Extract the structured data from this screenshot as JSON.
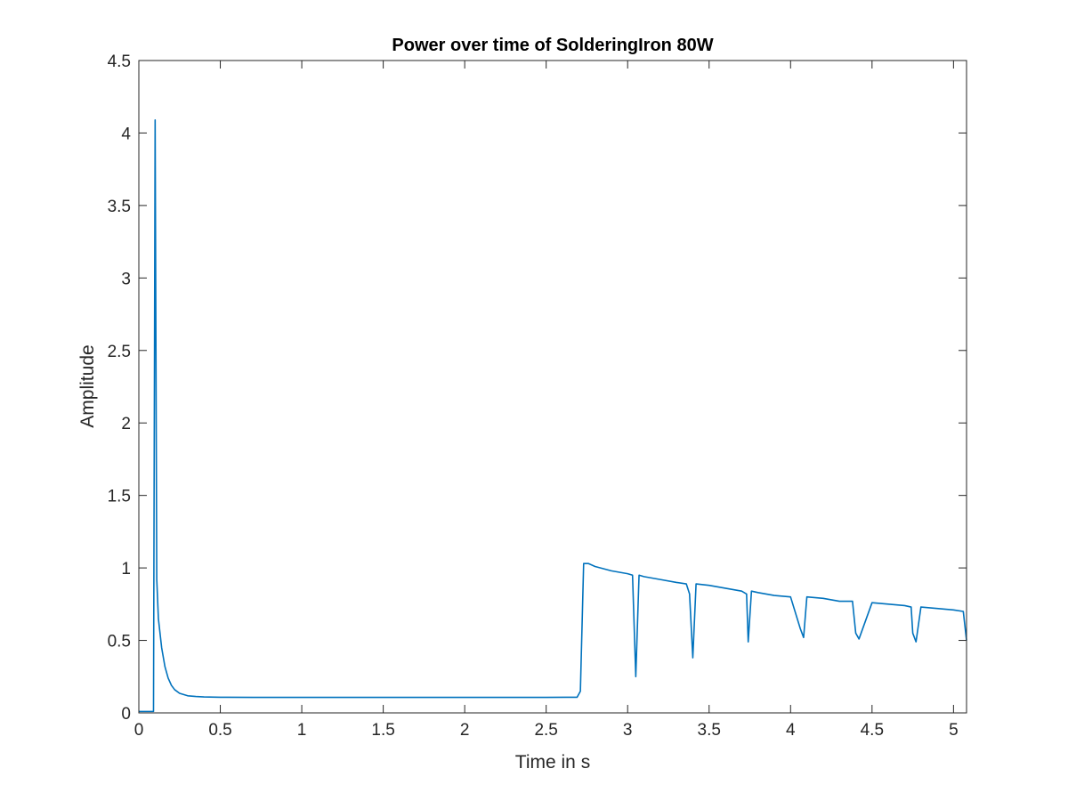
{
  "chart_data": {
    "type": "line",
    "title": "Power over time of SolderingIron 80W",
    "xlabel": "Time in s",
    "ylabel": "Amplitude",
    "xlim": [
      0,
      5.08
    ],
    "ylim": [
      0,
      4.5
    ],
    "xticks": [
      0,
      0.5,
      1,
      1.5,
      2,
      2.5,
      3,
      3.5,
      4,
      4.5,
      5
    ],
    "xtick_labels": [
      "0",
      "0.5",
      "1",
      "1.5",
      "2",
      "2.5",
      "3",
      "3.5",
      "4",
      "4.5",
      "5"
    ],
    "yticks": [
      0,
      0.5,
      1,
      1.5,
      2,
      2.5,
      3,
      3.5,
      4,
      4.5
    ],
    "ytick_labels": [
      "0",
      "0.5",
      "1",
      "1.5",
      "2",
      "2.5",
      "3",
      "3.5",
      "4",
      "4.5"
    ],
    "grid": false,
    "line_color": "#0072BD",
    "axis_color": "#262626",
    "series": [
      {
        "x": [
          0,
          0.09,
          0.1,
          0.11,
          0.12,
          0.14,
          0.16,
          0.18,
          0.2,
          0.22,
          0.25,
          0.3,
          0.35,
          0.4,
          0.5,
          0.7,
          1.0,
          1.5,
          2.0,
          2.5,
          2.69,
          2.71,
          2.73,
          2.76,
          2.8,
          2.9,
          3.0,
          3.03,
          3.05,
          3.07,
          3.1,
          3.2,
          3.3,
          3.36,
          3.38,
          3.4,
          3.42,
          3.5,
          3.6,
          3.7,
          3.73,
          3.74,
          3.76,
          3.8,
          3.9,
          4.0,
          4.06,
          4.08,
          4.1,
          4.2,
          4.3,
          4.38,
          4.4,
          4.42,
          4.5,
          4.6,
          4.7,
          4.74,
          4.75,
          4.77,
          4.8,
          4.9,
          5.0,
          5.06,
          5.08
        ],
        "y": [
          0.01,
          0.01,
          4.09,
          0.92,
          0.65,
          0.45,
          0.32,
          0.24,
          0.19,
          0.16,
          0.135,
          0.118,
          0.113,
          0.11,
          0.108,
          0.107,
          0.107,
          0.107,
          0.107,
          0.107,
          0.108,
          0.15,
          1.03,
          1.03,
          1.01,
          0.98,
          0.96,
          0.95,
          0.25,
          0.95,
          0.94,
          0.92,
          0.9,
          0.89,
          0.82,
          0.38,
          0.89,
          0.88,
          0.86,
          0.84,
          0.82,
          0.49,
          0.84,
          0.83,
          0.81,
          0.8,
          0.58,
          0.52,
          0.8,
          0.79,
          0.77,
          0.77,
          0.55,
          0.51,
          0.76,
          0.75,
          0.74,
          0.73,
          0.55,
          0.49,
          0.73,
          0.72,
          0.71,
          0.7,
          0.5
        ]
      }
    ]
  }
}
